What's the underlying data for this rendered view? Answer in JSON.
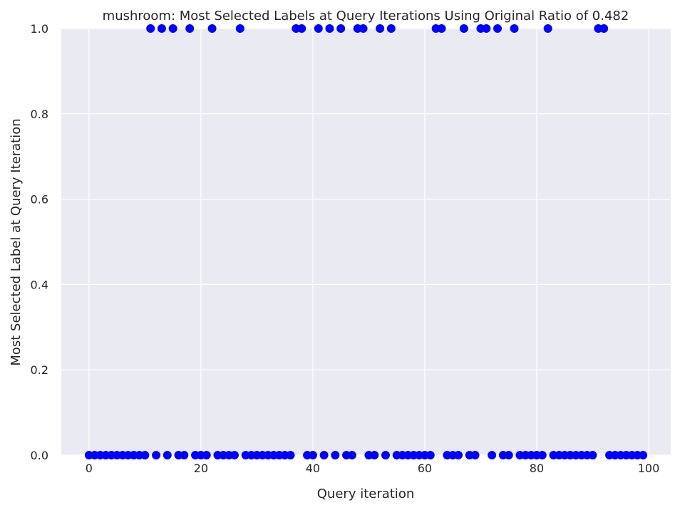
{
  "chart_data": {
    "type": "scatter",
    "title": "mushroom: Most Selected Labels at Query Iterations Using Original Ratio of 0.482",
    "xlabel": "Query iteration",
    "ylabel": "Most Selected Label at Query Iteration",
    "xlim": [
      -4.95,
      103.95
    ],
    "ylim": [
      0,
      1
    ],
    "grid": true,
    "style": "seaborn-darkgrid",
    "colors": {
      "background": "#ffffff",
      "plot_area": "#eaeaf2",
      "grid": "#ffffff",
      "marker": "#0000ff",
      "text": "#262626"
    },
    "x_ticks": [
      0,
      20,
      40,
      60,
      80,
      100
    ],
    "x_tick_labels": [
      "0",
      "20",
      "40",
      "60",
      "80",
      "100"
    ],
    "y_ticks": [
      0.0,
      0.2,
      0.4,
      0.6,
      0.8,
      1.0
    ],
    "y_tick_labels": [
      "0.0",
      "0.2",
      "0.4",
      "0.6",
      "0.8",
      "1.0"
    ],
    "x": [
      0,
      1,
      2,
      3,
      4,
      5,
      6,
      7,
      8,
      9,
      10,
      11,
      12,
      13,
      14,
      15,
      16,
      17,
      18,
      19,
      20,
      21,
      22,
      23,
      24,
      25,
      26,
      27,
      28,
      29,
      30,
      31,
      32,
      33,
      34,
      35,
      36,
      37,
      38,
      39,
      40,
      41,
      42,
      43,
      44,
      45,
      46,
      47,
      48,
      49,
      50,
      51,
      52,
      53,
      54,
      55,
      56,
      57,
      58,
      59,
      60,
      61,
      62,
      63,
      64,
      65,
      66,
      67,
      68,
      69,
      70,
      71,
      72,
      73,
      74,
      75,
      76,
      77,
      78,
      79,
      80,
      81,
      82,
      83,
      84,
      85,
      86,
      87,
      88,
      89,
      90,
      91,
      92,
      93,
      94,
      95,
      96,
      97,
      98,
      99
    ],
    "y": [
      0,
      0,
      0,
      0,
      0,
      0,
      0,
      0,
      0,
      0,
      0,
      1,
      0,
      1,
      0,
      1,
      0,
      0,
      1,
      0,
      0,
      0,
      1,
      0,
      0,
      0,
      0,
      1,
      0,
      0,
      0,
      0,
      0,
      0,
      0,
      0,
      0,
      1,
      1,
      0,
      0,
      1,
      0,
      1,
      0,
      1,
      0,
      0,
      1,
      1,
      0,
      0,
      1,
      0,
      1,
      0,
      0,
      0,
      0,
      0,
      0,
      0,
      1,
      1,
      0,
      0,
      0,
      1,
      0,
      0,
      1,
      1,
      0,
      1,
      0,
      0,
      1,
      0,
      0,
      0,
      0,
      0,
      1,
      0,
      0,
      0,
      0,
      0,
      0,
      0,
      0,
      1,
      1,
      0,
      0,
      0,
      0,
      0,
      0,
      0
    ]
  }
}
